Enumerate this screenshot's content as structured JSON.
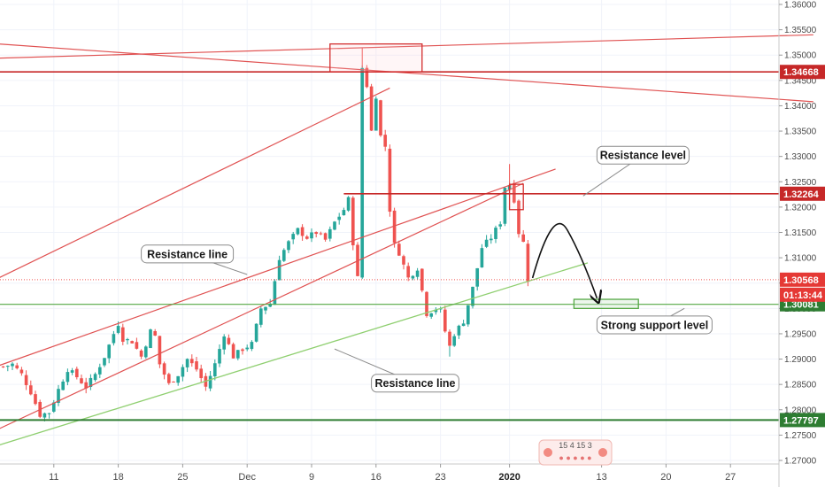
{
  "chart_data": {
    "type": "candlestick",
    "title": "",
    "xlabel": "",
    "ylabel": "",
    "ylim": [
      1.27,
      1.36
    ],
    "y_ticks": [
      "1.36000",
      "1.35500",
      "1.35000",
      "1.34500",
      "1.34000",
      "1.33500",
      "1.33000",
      "1.32500",
      "1.32000",
      "1.31500",
      "1.31000",
      "1.30500",
      "1.30000",
      "1.29500",
      "1.29000",
      "1.28500",
      "1.28000",
      "1.27500",
      "1.27000"
    ],
    "x_ticks": [
      {
        "label": "11",
        "bar": 11
      },
      {
        "label": "18",
        "bar": 25
      },
      {
        "label": "25",
        "bar": 39
      },
      {
        "label": "Dec",
        "bar": 53
      },
      {
        "label": "9",
        "bar": 67
      },
      {
        "label": "16",
        "bar": 81
      },
      {
        "label": "23",
        "bar": 95
      },
      {
        "label": "2020",
        "bar": 110,
        "bold": true
      },
      {
        "label": "13",
        "bar": 130
      },
      {
        "label": "20",
        "bar": 144
      },
      {
        "label": "27",
        "bar": 158
      }
    ],
    "bars_total": 171,
    "close_path": [
      [
        0,
        1.2885
      ],
      [
        2,
        1.289
      ],
      [
        4,
        1.287
      ],
      [
        6,
        1.2835
      ],
      [
        8,
        1.279
      ],
      [
        10,
        1.2795
      ],
      [
        12,
        1.284
      ],
      [
        14,
        1.288
      ],
      [
        16,
        1.2865
      ],
      [
        18,
        1.2845
      ],
      [
        20,
        1.287
      ],
      [
        22,
        1.2905
      ],
      [
        24,
        1.295
      ],
      [
        25,
        1.297
      ],
      [
        26,
        1.294
      ],
      [
        28,
        1.2935
      ],
      [
        30,
        1.2905
      ],
      [
        32,
        1.2955
      ],
      [
        33,
        1.2945
      ],
      [
        34,
        1.289
      ],
      [
        36,
        1.285
      ],
      [
        38,
        1.287
      ],
      [
        40,
        1.29
      ],
      [
        42,
        1.288
      ],
      [
        44,
        1.2845
      ],
      [
        46,
        1.289
      ],
      [
        48,
        1.295
      ],
      [
        50,
        1.2905
      ],
      [
        52,
        1.292
      ],
      [
        54,
        1.293
      ],
      [
        56,
        1.3
      ],
      [
        58,
        1.301
      ],
      [
        60,
        1.31
      ],
      [
        62,
        1.313
      ],
      [
        64,
        1.3155
      ],
      [
        66,
        1.314
      ],
      [
        68,
        1.315
      ],
      [
        70,
        1.3135
      ],
      [
        72,
        1.317
      ],
      [
        74,
        1.3195
      ],
      [
        75,
        1.3215
      ],
      [
        76,
        1.313
      ],
      [
        77,
        1.306
      ],
      [
        78,
        1.3475
      ],
      [
        79,
        1.344
      ],
      [
        80,
        1.335
      ],
      [
        81,
        1.342
      ],
      [
        82,
        1.334
      ],
      [
        83,
        1.332
      ],
      [
        84,
        1.3195
      ],
      [
        85,
        1.3125
      ],
      [
        86,
        1.311
      ],
      [
        88,
        1.306
      ],
      [
        90,
        1.308
      ],
      [
        92,
        1.299
      ],
      [
        94,
        1.3
      ],
      [
        95,
        1.2995
      ],
      [
        96,
        1.2955
      ],
      [
        97,
        1.2925
      ],
      [
        98,
        1.295
      ],
      [
        100,
        1.2975
      ],
      [
        102,
        1.304
      ],
      [
        104,
        1.312
      ],
      [
        106,
        1.314
      ],
      [
        108,
        1.317
      ],
      [
        109,
        1.324
      ],
      [
        110,
        1.3245
      ],
      [
        111,
        1.3215
      ],
      [
        112,
        1.315
      ],
      [
        113,
        1.313
      ],
      [
        114,
        1.3057
      ]
    ],
    "drawings": [
      {
        "kind": "line",
        "color": "#e05252",
        "w": 1.2,
        "p1": [
          -1,
          1.3522
        ],
        "p2": [
          176,
          1.3408
        ]
      },
      {
        "kind": "line",
        "color": "#e05252",
        "w": 1.2,
        "p1": [
          -1,
          1.3494
        ],
        "p2": [
          176,
          1.354
        ]
      },
      {
        "kind": "line",
        "color": "#e05252",
        "w": 1.2,
        "p1": [
          -1,
          1.306
        ],
        "p2": [
          84,
          1.3435
        ]
      },
      {
        "kind": "line",
        "color": "#e05252",
        "w": 1.2,
        "p1": [
          -1,
          1.2887
        ],
        "p2": [
          120,
          1.3275
        ]
      },
      {
        "kind": "line",
        "color": "#e05252",
        "w": 1.2,
        "p1": [
          -1,
          1.2762
        ],
        "p2": [
          113,
          1.3247
        ]
      },
      {
        "kind": "line",
        "color": "#8fcf70",
        "w": 1.3,
        "p1": [
          -1,
          1.273
        ],
        "p2": [
          127,
          1.309
        ]
      }
    ],
    "hlines": [
      {
        "y": 1.34668,
        "color": "#c62828",
        "w": 1.6,
        "label": "1.34668",
        "tag": "#c62828"
      },
      {
        "y": 1.32264,
        "color": "#c62828",
        "w": 1.6,
        "x_from": 74,
        "label": "1.32264",
        "tag": "#c62828"
      },
      {
        "y": 1.30081,
        "color": "#55a845",
        "w": 1.2,
        "label": "1.30081",
        "tag": "#2e7d32"
      },
      {
        "y": 1.27797,
        "color": "#2e7d32",
        "w": 2.0,
        "label": "1.27797",
        "tag": "#2e7d32"
      }
    ],
    "current_price": {
      "y": 1.30568,
      "label": "1.30568",
      "timer": "01:13:44",
      "tag": "#e53935"
    },
    "boxes": [
      {
        "color": "#d32f2f",
        "fill": "rgba(255,205,210,0.18)",
        "x1": 71,
        "x2": 91,
        "y1": 1.3522,
        "y2": 1.3467
      },
      {
        "color": "#d32f2f",
        "fill": "rgba(255,205,210,0.10)",
        "x1": 110,
        "x2": 113,
        "y1": 1.3245,
        "y2": 1.3195
      },
      {
        "color": "#55a845",
        "fill": "rgba(200,230,201,0.35)",
        "x1": 124,
        "x2": 138,
        "y1": 1.3018,
        "y2": 1.3
      }
    ],
    "callouts": [
      {
        "text": "Resistance level",
        "x1": 129,
        "y1": 1.332,
        "x2": 149,
        "y2": 1.3285,
        "tx": 126,
        "ty": 1.3222
      },
      {
        "text": "Resistance line",
        "x1": 30,
        "y1": 1.3125,
        "x2": 50,
        "y2": 1.309,
        "tx": 53,
        "ty": 1.3067
      },
      {
        "text": "Strong support level",
        "x1": 129,
        "y1": 1.2985,
        "x2": 154,
        "y2": 1.295,
        "tx": 148,
        "ty": 1.3
      },
      {
        "text": "Resistance line",
        "x1": 80,
        "y1": 1.287,
        "x2": 99,
        "y2": 1.2835,
        "tx": 72,
        "ty": 1.292
      }
    ],
    "projection": {
      "from": [
        115,
        1.306
      ],
      "peak": [
        121,
        1.3155
      ],
      "to": [
        129,
        1.302
      ]
    },
    "series": [
      {
        "values_ref": "close_path"
      }
    ]
  },
  "logo": {
    "text": "15 4 15 3"
  },
  "colors": {
    "up": "#26a69a",
    "down": "#ef5350",
    "axis": "#d6d6d6",
    "grid": "#f0f3fa"
  }
}
